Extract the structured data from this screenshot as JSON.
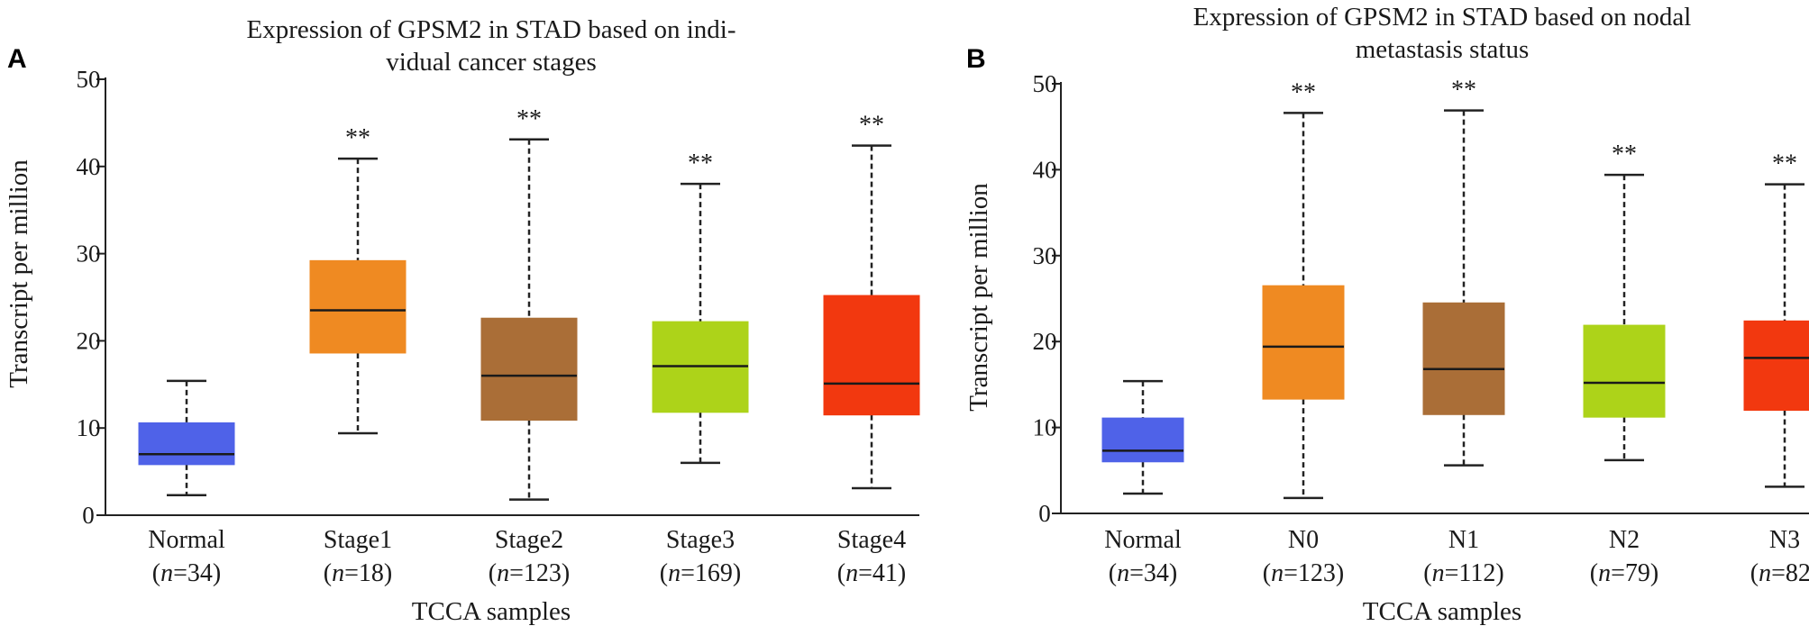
{
  "chart_data": [
    {
      "type": "box",
      "panel": "A",
      "title": [
        "Expression of GPSM2 in STAD based on indi-",
        "vidual cancer stages"
      ],
      "xlabel": "TCCA samples",
      "ylabel": "Transcript per million",
      "ylim": [
        0,
        50
      ],
      "yticks": [
        0,
        10,
        20,
        30,
        40,
        50
      ],
      "grid": false,
      "categories": [
        {
          "name": "Normal",
          "n": "34",
          "color": "#4f62e8",
          "min": 2.3,
          "q1": 5.8,
          "median": 7.0,
          "q3": 10.6,
          "max": 15.4,
          "sig": ""
        },
        {
          "name": "Stage1",
          "n": "18",
          "color": "#ef8a22",
          "min": 9.4,
          "q1": 18.6,
          "median": 23.5,
          "q3": 29.2,
          "max": 40.9,
          "sig": "**"
        },
        {
          "name": "Stage2",
          "n": "123",
          "color": "#aa6e37",
          "min": 1.8,
          "q1": 10.9,
          "median": 16.0,
          "q3": 22.6,
          "max": 43.1,
          "sig": "**"
        },
        {
          "name": "Stage3",
          "n": "169",
          "color": "#add319",
          "min": 6.0,
          "q1": 11.8,
          "median": 17.1,
          "q3": 22.2,
          "max": 38.0,
          "sig": "**"
        },
        {
          "name": "Stage4",
          "n": "41",
          "color": "#f2380f",
          "min": 3.1,
          "q1": 11.5,
          "median": 15.1,
          "q3": 25.2,
          "max": 42.4,
          "sig": "**"
        }
      ]
    },
    {
      "type": "box",
      "panel": "B",
      "title": [
        "Expression of GPSM2 in STAD based on nodal",
        "metastasis status"
      ],
      "xlabel": "TCCA samples",
      "ylabel": "Transcript per million",
      "ylim": [
        0,
        50
      ],
      "yticks": [
        0,
        10,
        20,
        30,
        40,
        50
      ],
      "grid": false,
      "categories": [
        {
          "name": "Normal",
          "n": "34",
          "color": "#4f62e8",
          "min": 2.3,
          "q1": 6.0,
          "median": 7.3,
          "q3": 11.1,
          "max": 15.4,
          "sig": ""
        },
        {
          "name": "N0",
          "n": "123",
          "color": "#ef8a22",
          "min": 1.8,
          "q1": 13.3,
          "median": 19.4,
          "q3": 26.5,
          "max": 46.6,
          "sig": "**"
        },
        {
          "name": "N1",
          "n": "112",
          "color": "#aa6e37",
          "min": 5.6,
          "q1": 11.5,
          "median": 16.8,
          "q3": 24.5,
          "max": 46.9,
          "sig": "**"
        },
        {
          "name": "N2",
          "n": "79",
          "color": "#add319",
          "min": 6.2,
          "q1": 11.2,
          "median": 15.2,
          "q3": 21.9,
          "max": 39.4,
          "sig": "**"
        },
        {
          "name": "N3",
          "n": "82",
          "color": "#f2380f",
          "min": 3.1,
          "q1": 12.0,
          "median": 18.1,
          "q3": 22.4,
          "max": 38.3,
          "sig": "**"
        }
      ]
    }
  ]
}
